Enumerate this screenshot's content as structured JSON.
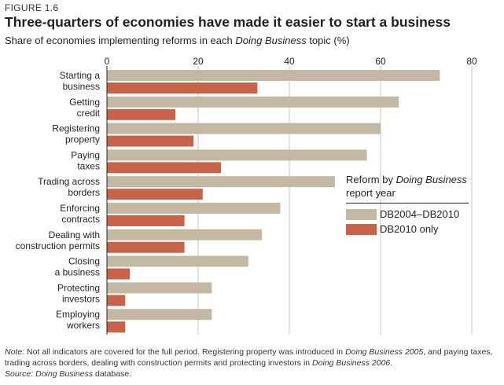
{
  "figure_label": "FIGURE 1.6",
  "title": "Three-quarters of economies have made it easier to start a business",
  "subtitle": {
    "prefix": "Share of economies implementing reforms in each ",
    "italic": "Doing Business",
    "suffix": " topic (%)"
  },
  "legend": {
    "title_italic": "Reform by Doing Business",
    "title_rest": "report year"
  },
  "colors": {
    "series_a": "#c3b9a2",
    "series_b": "#c8634a"
  },
  "note": {
    "label": "Note:",
    "part1": " Not all indicators are covered for the full period. Registering property was introduced in ",
    "italic1": "Doing Business 2005",
    "part2": ", and paying taxes, trading across borders, dealing with construction permits and protecting investors in ",
    "italic2": "Doing Business 2006",
    "part3": "."
  },
  "source": {
    "label": "Source:",
    "italic": "Doing Business",
    "rest": " database."
  },
  "chart_data": {
    "type": "bar",
    "orientation": "horizontal",
    "categories": [
      [
        "Starting a",
        "business"
      ],
      [
        "Getting",
        "credit"
      ],
      [
        "Registering",
        "property"
      ],
      [
        "Paying",
        "taxes"
      ],
      [
        "Trading across",
        "borders"
      ],
      [
        "Enforcing",
        "contracts"
      ],
      [
        "Dealing with",
        "construction permits"
      ],
      [
        "Closing",
        "a business"
      ],
      [
        "Protecting",
        "investors"
      ],
      [
        "Employing",
        "workers"
      ]
    ],
    "series": [
      {
        "name": "DB2004–DB2010",
        "values": [
          73,
          64,
          60,
          57,
          50,
          38,
          34,
          31,
          23,
          23
        ]
      },
      {
        "name": "DB2010 only",
        "values": [
          33,
          15,
          19,
          25,
          21,
          17,
          17,
          5,
          4,
          4
        ]
      }
    ],
    "x_ticks": [
      0,
      20,
      40,
      60,
      80
    ],
    "xlim": [
      0,
      80
    ],
    "grid": true,
    "legend_position": "right"
  }
}
